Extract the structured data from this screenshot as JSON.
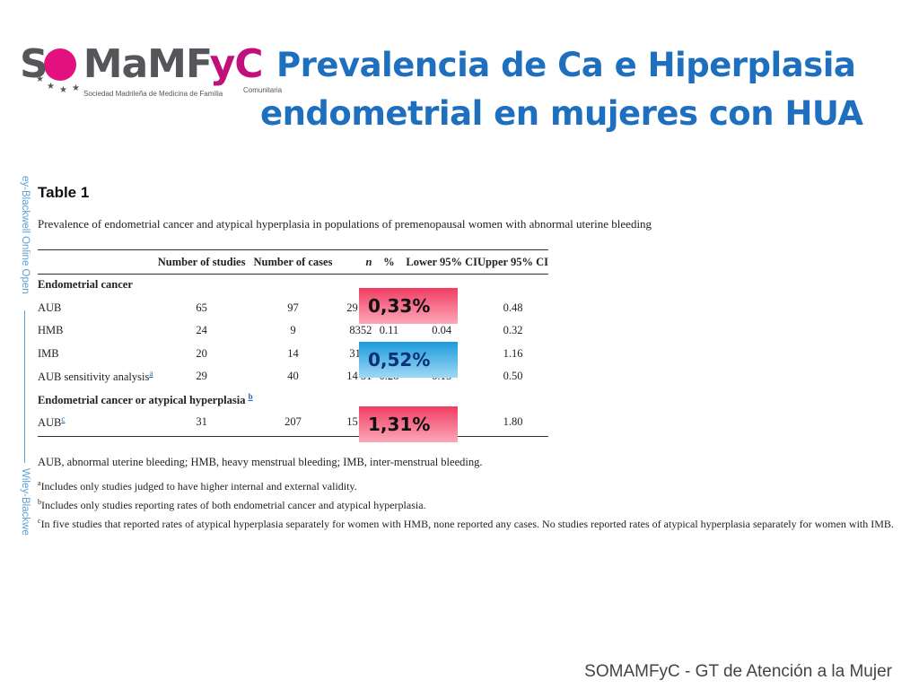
{
  "logo": {
    "wordmark_prefix": "S",
    "wordmark_rest_grey": "MaMF",
    "wordmark_magenta": "yC",
    "subtitle": "Sociedad Madrileña de Medicina de Familia",
    "subtitle2": "Comunitaria",
    "circle_color": "#e3117f"
  },
  "slide": {
    "title_line1": "Prevalencia de Ca e Hiperplasia",
    "title_line2": "endometrial en mujeres con HUA",
    "title_color": "#1f6fbf"
  },
  "watermark": {
    "top": "ey-Blackwell Online Open",
    "bottom": "Wiley-Blackwe"
  },
  "table": {
    "heading": "Table 1",
    "caption": "Prevalence of endometrial cancer and atypical hyperplasia in populations of premenopausal women with abnormal uterine bleeding",
    "columns": [
      "",
      "Number of studies",
      "Number of cases",
      "n",
      "%",
      "Lower 95% CI",
      "Upper 95% CI"
    ],
    "section1": "Endometrial cancer",
    "rows1": [
      {
        "label": "AUB",
        "sup": "",
        "studies": "65",
        "cases": "97",
        "n": "29 05",
        "pct": "",
        "lower": "",
        "upper": "0.48"
      },
      {
        "label": "HMB",
        "sup": "",
        "studies": "24",
        "cases": "9",
        "n": "8352",
        "pct": "0.11",
        "lower": "0.04",
        "upper": "0.32"
      },
      {
        "label": "IMB",
        "sup": "",
        "studies": "20",
        "cases": "14",
        "n": "3109",
        "pct": "",
        "lower": "",
        "upper": "1.16"
      },
      {
        "label": "AUB sensitivity analysis",
        "sup": "a",
        "studies": "29",
        "cases": "40",
        "n": "14 51",
        "pct": "0.28",
        "lower": "0.15",
        "upper": "0.50"
      }
    ],
    "section2": "Endometrial cancer or atypical hyperplasia",
    "section2_sup": "b",
    "rows2": [
      {
        "label": "AUB",
        "sup": "c",
        "studies": "31",
        "cases": "207",
        "n": "15 77",
        "pct": "",
        "lower": "",
        "upper": "1.80"
      }
    ]
  },
  "highlights": [
    {
      "text": "0,33%",
      "color": "#f03d62"
    },
    {
      "text": "0,52%",
      "color": "#1b9bdc"
    },
    {
      "text": "1,31%",
      "color": "#f03d62"
    }
  ],
  "notes": {
    "abbreviations": "AUB, abnormal uterine bleeding; HMB, heavy menstrual bleeding; IMB, inter-menstrual bleeding.",
    "a_mark": "a",
    "a": "Includes only studies judged to have higher internal and external validity.",
    "b_mark": "b",
    "b": "Includes only studies reporting rates of both endometrial cancer and atypical hyperplasia.",
    "c_mark": "c",
    "c": "In five studies that reported rates of atypical hyperplasia separately for women with HMB, none reported any cases. No studies reported rates of atypical hyperplasia separately for women with IMB."
  },
  "footer": "SOMAMFyC - GT de Atención a la Mujer"
}
